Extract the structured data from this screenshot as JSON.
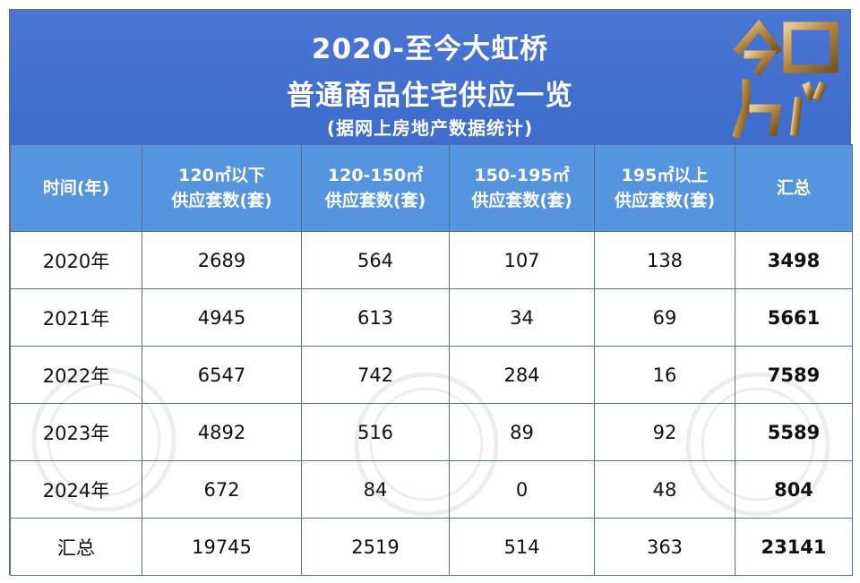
{
  "banner": {
    "title_line1": "2020-至今大虹桥",
    "title_line2": "普通商品住宅供应一览",
    "subtitle": "(据网上房地产数据统计)",
    "logo_icon": "jinri-fangchan-logo",
    "colors": {
      "background": "#4a76d3",
      "text": "#ffffff",
      "logo_gold": "#c89a4a"
    }
  },
  "table": {
    "header_bg": "#5595e0",
    "headers": [
      {
        "line1": "时间(年)",
        "line2": ""
      },
      {
        "line1": "120㎡以下",
        "line2": "供应套数(套)"
      },
      {
        "line1": "120-150㎡",
        "line2": "供应套数(套)"
      },
      {
        "line1": "150-195㎡",
        "line2": "供应套数(套)"
      },
      {
        "line1": "195㎡以上",
        "line2": "供应套数(套)"
      },
      {
        "line1": "汇总",
        "line2": ""
      }
    ],
    "rows": [
      {
        "year": "2020年",
        "c1": "2689",
        "c2": "564",
        "c3": "107",
        "c4": "138",
        "total": "3498"
      },
      {
        "year": "2021年",
        "c1": "4945",
        "c2": "613",
        "c3": "34",
        "c4": "69",
        "total": "5661"
      },
      {
        "year": "2022年",
        "c1": "6547",
        "c2": "742",
        "c3": "284",
        "c4": "16",
        "total": "7589"
      },
      {
        "year": "2023年",
        "c1": "4892",
        "c2": "516",
        "c3": "89",
        "c4": "92",
        "total": "5589"
      },
      {
        "year": "2024年",
        "c1": "672",
        "c2": "84",
        "c3": "0",
        "c4": "48",
        "total": "804"
      },
      {
        "year": "汇总",
        "c1": "19745",
        "c2": "2519",
        "c3": "514",
        "c4": "363",
        "total": "23141"
      }
    ]
  }
}
